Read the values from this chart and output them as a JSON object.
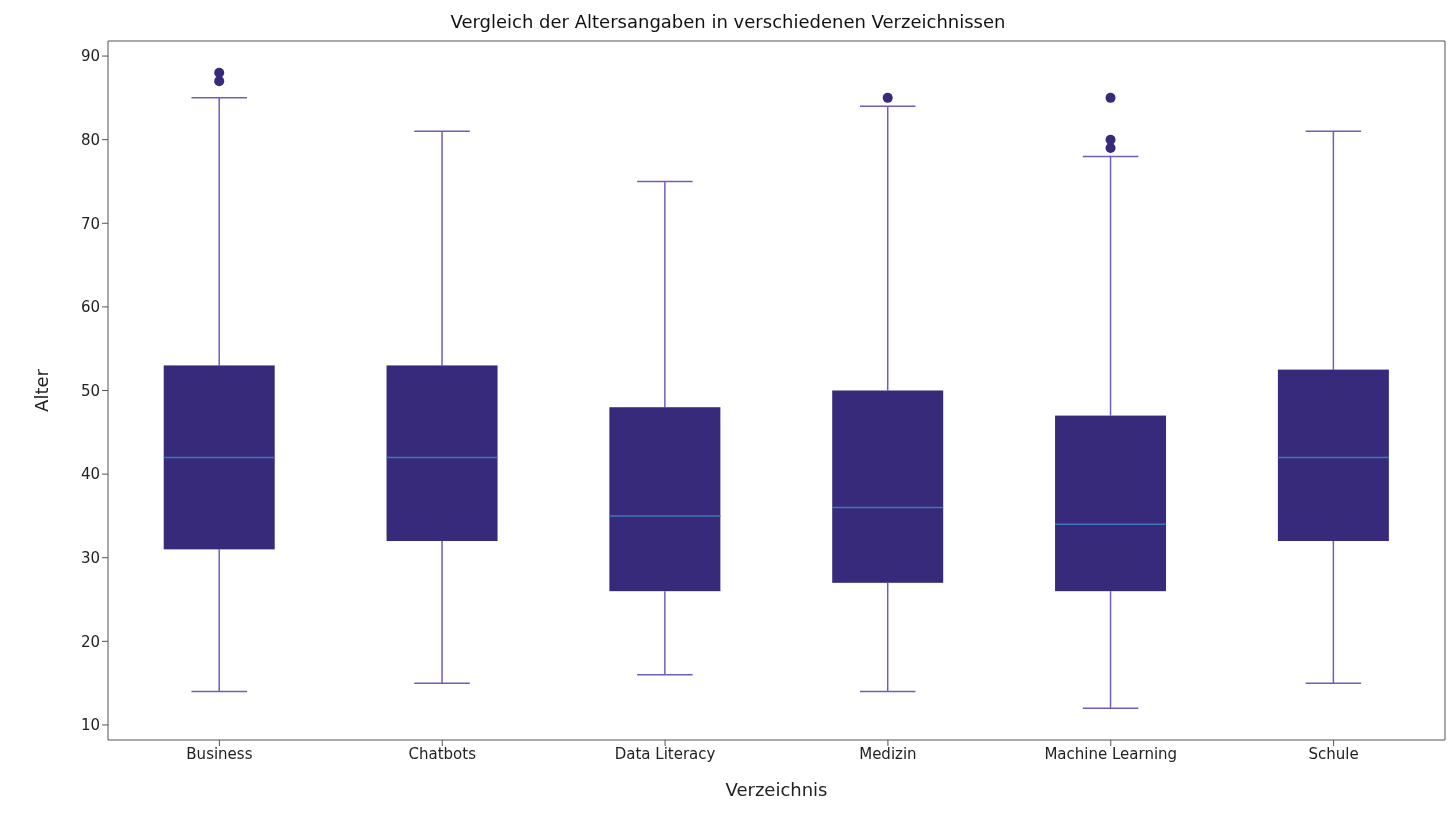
{
  "chart_data": {
    "type": "box",
    "title": "Vergleich der Altersangaben in verschiedenen Verzeichnissen",
    "xlabel": "Verzeichnis",
    "ylabel": "Alter",
    "categories": [
      "Business",
      "Chatbots",
      "Data Literacy",
      "Medizin",
      "Machine Learning",
      "Schule"
    ],
    "color": "#372a7a",
    "boxes": [
      {
        "low": 14,
        "q1": 31,
        "median": 42,
        "q3": 53,
        "high": 85,
        "outliers": [
          87,
          88
        ]
      },
      {
        "low": 15,
        "q1": 32,
        "median": 42,
        "q3": 53,
        "high": 81
      },
      {
        "low": 16,
        "q1": 26,
        "median": 35,
        "q3": 48,
        "high": 75
      },
      {
        "low": 14,
        "q1": 27,
        "median": 36,
        "q3": 50,
        "high": 84,
        "outliers": [
          85
        ]
      },
      {
        "low": 12,
        "q1": 26,
        "median": 34,
        "q3": 47,
        "high": 78,
        "outliers": [
          79,
          80,
          85
        ]
      },
      {
        "low": 15,
        "q1": 32,
        "median": 42,
        "q3": 52.5,
        "high": 81
      }
    ],
    "ylim": [
      8.2,
      91.8
    ],
    "yticks": [
      10,
      20,
      30,
      40,
      50,
      60,
      70,
      80,
      90
    ]
  }
}
